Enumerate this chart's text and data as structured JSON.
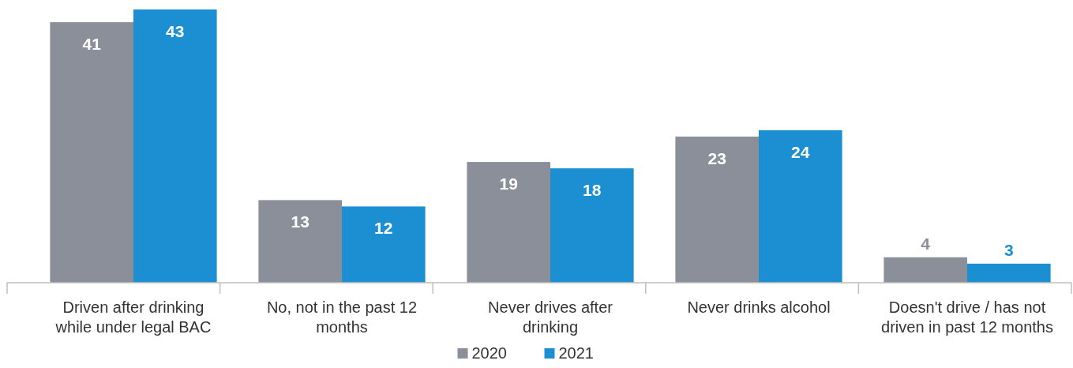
{
  "chart_data": {
    "type": "bar",
    "categories": [
      "Driven after drinking while under legal BAC",
      "No, not in the past 12 months",
      "Never drives after drinking",
      "Never drinks alcohol",
      "Doesn't drive / has not driven in past 12 months"
    ],
    "series": [
      {
        "name": "2020",
        "color": "#8a8f99",
        "values": [
          41,
          13,
          19,
          23,
          4
        ]
      },
      {
        "name": "2021",
        "color": "#1b8fd2",
        "values": [
          43,
          12,
          18,
          24,
          3
        ]
      }
    ],
    "data_labels": true,
    "legend": "bottom"
  }
}
